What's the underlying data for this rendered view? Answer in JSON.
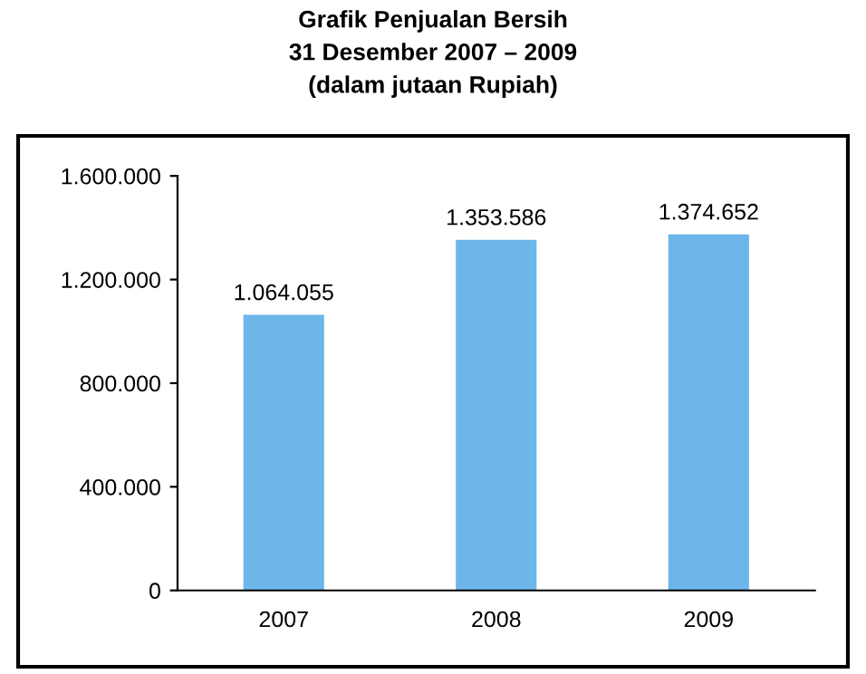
{
  "chart_data": {
    "type": "bar",
    "title": "Grafik Penjualan Bersih\n31 Desember 2007 – 2009\n(dalam jutaan Rupiah)",
    "categories": [
      "2007",
      "2008",
      "2009"
    ],
    "values": [
      1064055,
      1353586,
      1374652
    ],
    "value_labels": [
      "1.064.055",
      "1.353.586",
      "1.374.652"
    ],
    "color": "#6cb6ea",
    "ylim": [
      0,
      1600000
    ],
    "yticks": [
      {
        "value": 0,
        "label": "0"
      },
      {
        "value": 400000,
        "label": "400.000"
      },
      {
        "value": 800000,
        "label": "800.000"
      },
      {
        "value": 1200000,
        "label": "1.200.000"
      },
      {
        "value": 1600000,
        "label": "1.600.000"
      }
    ],
    "grid": false,
    "legend": false
  }
}
